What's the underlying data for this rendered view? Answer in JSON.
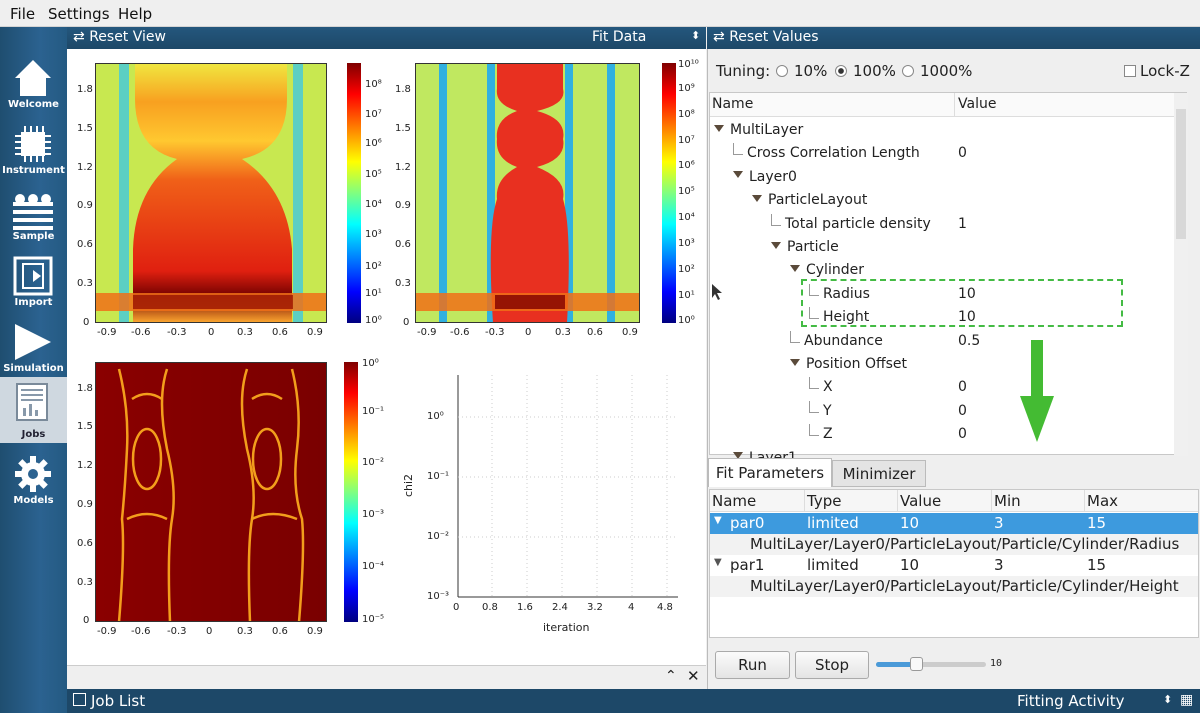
{
  "menu": {
    "file": "File",
    "settings": "Settings",
    "help": "Help"
  },
  "sidebar": [
    {
      "label": "Welcome",
      "icon": "home-icon"
    },
    {
      "label": "Instrument",
      "icon": "chip-icon"
    },
    {
      "label": "Sample",
      "icon": "layers-icon"
    },
    {
      "label": "Import",
      "icon": "import-icon"
    },
    {
      "label": "Simulation",
      "icon": "play-icon"
    },
    {
      "label": "Jobs",
      "icon": "chart-icon"
    },
    {
      "label": "Models",
      "icon": "gear-icon"
    }
  ],
  "left_toolbar": {
    "reset_view": "Reset View",
    "mode": "Fit Data"
  },
  "right_toolbar": {
    "reset_values": "Reset Values"
  },
  "tuning": {
    "label": "Tuning:",
    "options": [
      "10%",
      "100%",
      "1000%"
    ],
    "selected": "100%",
    "lock_z": "Lock-Z"
  },
  "tree": {
    "col_name": "Name",
    "col_value": "Value",
    "rows": [
      {
        "name": "MultiLayer",
        "value": "",
        "level": 0,
        "expand": true
      },
      {
        "name": "Cross Correlation Length",
        "value": "0",
        "level": 1,
        "expand": false
      },
      {
        "name": "Layer0",
        "value": "",
        "level": 1,
        "expand": true
      },
      {
        "name": "ParticleLayout",
        "value": "",
        "level": 2,
        "expand": true
      },
      {
        "name": "Total particle density",
        "value": "1",
        "level": 3,
        "expand": false
      },
      {
        "name": "Particle",
        "value": "",
        "level": 3,
        "expand": true
      },
      {
        "name": "Cylinder",
        "value": "",
        "level": 4,
        "expand": true
      },
      {
        "name": "Radius",
        "value": "10",
        "level": 5,
        "expand": false
      },
      {
        "name": "Height",
        "value": "10",
        "level": 5,
        "expand": false
      },
      {
        "name": "Abundance",
        "value": "0.5",
        "level": 4,
        "expand": false
      },
      {
        "name": "Position Offset",
        "value": "",
        "level": 4,
        "expand": true
      },
      {
        "name": "X",
        "value": "0",
        "level": 5,
        "expand": false
      },
      {
        "name": "Y",
        "value": "0",
        "level": 5,
        "expand": false
      },
      {
        "name": "Z",
        "value": "0",
        "level": 5,
        "expand": false
      },
      {
        "name": "Layer1",
        "value": "",
        "level": 1,
        "expand": true
      }
    ]
  },
  "tabs": [
    "Fit Parameters",
    "Minimizer"
  ],
  "fit_table": {
    "headers": [
      "Name",
      "Type",
      "Value",
      "Min",
      "Max"
    ],
    "rows": [
      {
        "name": "par0",
        "type": "limited",
        "value": "10",
        "min": "3",
        "max": "15",
        "path": "MultiLayer/Layer0/ParticleLayout/Particle/Cylinder/Radius"
      },
      {
        "name": "par1",
        "type": "limited",
        "value": "10",
        "min": "3",
        "max": "15",
        "path": "MultiLayer/Layer0/ParticleLayout/Particle/Cylinder/Height"
      }
    ]
  },
  "buttons": {
    "run": "Run",
    "stop": "Stop"
  },
  "slider_value": "10",
  "bottom": {
    "job_list": "Job List",
    "activity": "Fitting Activity"
  },
  "plots": {
    "xticks": [
      "-0.9",
      "-0.6",
      "-0.3",
      "0",
      "0.3",
      "0.6",
      "0.9"
    ],
    "yticks": [
      "0",
      "0.3",
      "0.6",
      "0.9",
      "1.2",
      "1.5",
      "1.8"
    ],
    "cb1": [
      "10⁰",
      "10¹",
      "10²",
      "10³",
      "10⁴",
      "10⁵",
      "10⁶",
      "10⁷",
      "10⁸"
    ],
    "cb2": [
      "10⁰",
      "10¹",
      "10²",
      "10³",
      "10⁴",
      "10⁵",
      "10⁶",
      "10⁷",
      "10⁸",
      "10⁹",
      "10¹⁰"
    ],
    "cb3": [
      "10⁻⁵",
      "10⁻⁴",
      "10⁻³",
      "10⁻²",
      "10⁻¹",
      "10⁰"
    ],
    "chi_x": [
      "0",
      "0.8",
      "1.6",
      "2.4",
      "3.2",
      "4",
      "4.8"
    ],
    "chi_y": [
      "10⁻³",
      "10⁻²",
      "10⁻¹",
      "10⁰"
    ],
    "chi_xlabel": "iteration",
    "chi_ylabel": "chi2"
  }
}
